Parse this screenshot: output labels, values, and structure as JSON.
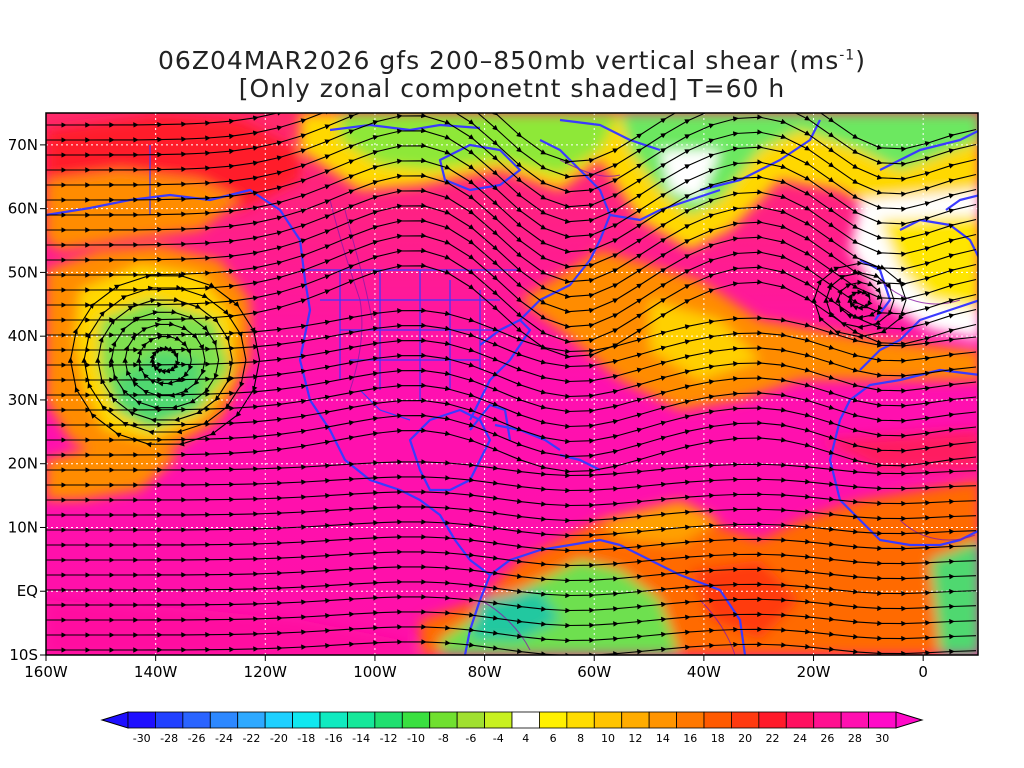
{
  "title": {
    "line1_prefix": "06Z04MAR2026 gfs 200–850mb vertical shear (ms",
    "line1_sup": "-1",
    "line1_suffix": ")",
    "line2": "[Only zonal componetnt shaded] T=60 h"
  },
  "map": {
    "lon_range": [
      -160,
      10
    ],
    "lat_range": [
      -10,
      75
    ],
    "lat_labels": [
      {
        "lat": 70,
        "text": "70N"
      },
      {
        "lat": 60,
        "text": "60N"
      },
      {
        "lat": 50,
        "text": "50N"
      },
      {
        "lat": 40,
        "text": "40N"
      },
      {
        "lat": 30,
        "text": "30N"
      },
      {
        "lat": 20,
        "text": "20N"
      },
      {
        "lat": 10,
        "text": "10N"
      },
      {
        "lat": 0,
        "text": "EQ"
      },
      {
        "lat": -10,
        "text": "10S"
      }
    ],
    "lon_labels": [
      {
        "lon": -160,
        "text": "160W"
      },
      {
        "lon": -140,
        "text": "140W"
      },
      {
        "lon": -120,
        "text": "120W"
      },
      {
        "lon": -100,
        "text": "100W"
      },
      {
        "lon": -80,
        "text": "80W"
      },
      {
        "lon": -60,
        "text": "60W"
      },
      {
        "lon": -40,
        "text": "40W"
      },
      {
        "lon": -20,
        "text": "20W"
      },
      {
        "lon": 0,
        "text": "0"
      }
    ],
    "gridlines": "dotted-white",
    "coastline_color": "#3a3aff",
    "streamline_color": "#000000"
  },
  "colorbar": {
    "labels": [
      "-30",
      "-28",
      "-26",
      "-24",
      "-22",
      "-20",
      "-18",
      "-16",
      "-14",
      "-12",
      "-10",
      "-8",
      "-6",
      "-4",
      "4",
      "6",
      "8",
      "10",
      "12",
      "14",
      "16",
      "18",
      "20",
      "22",
      "24",
      "26",
      "28",
      "30"
    ],
    "colors": [
      "#1e0fff",
      "#2140ff",
      "#2a64ff",
      "#2d88ff",
      "#2ea9ff",
      "#1ed0ff",
      "#10e8f0",
      "#10eac0",
      "#16e89a",
      "#20e070",
      "#3ae040",
      "#70e030",
      "#a0e030",
      "#c8f020",
      "#ffffff",
      "#fff000",
      "#ffdc00",
      "#ffc400",
      "#ffac00",
      "#ff9400",
      "#ff7800",
      "#ff5a00",
      "#ff3a10",
      "#ff1a2a",
      "#ff1060",
      "#ff1090",
      "#ff10b0",
      "#ff0ac8"
    ]
  }
}
